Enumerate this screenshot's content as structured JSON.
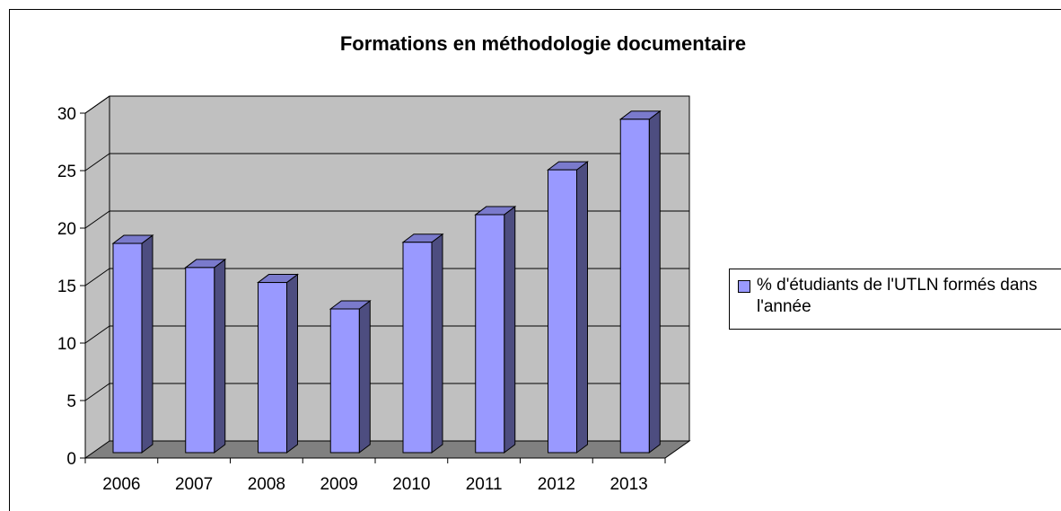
{
  "chart_data": {
    "type": "bar",
    "title": "Formations en méthodologie documentaire",
    "categories": [
      "2006",
      "2007",
      "2008",
      "2009",
      "2010",
      "2011",
      "2012",
      "2013"
    ],
    "series": [
      {
        "name": "% d'étudiants de l'UTLN formés dans l'année",
        "values": [
          18.2,
          16.1,
          14.8,
          12.5,
          18.3,
          20.7,
          24.6,
          29.0
        ]
      }
    ],
    "yticks": [
      "0",
      "5",
      "10",
      "15",
      "20",
      "25",
      "30"
    ],
    "ylim": [
      0,
      30
    ],
    "xlabel": "",
    "ylabel": "",
    "grid": true,
    "legend_position": "right",
    "colors": {
      "bar_front": "#9999ff",
      "bar_side": "#4d4d80",
      "bar_top": "#7a7acc",
      "back_wall": "#c0c0c0",
      "floor": "#808080"
    }
  }
}
